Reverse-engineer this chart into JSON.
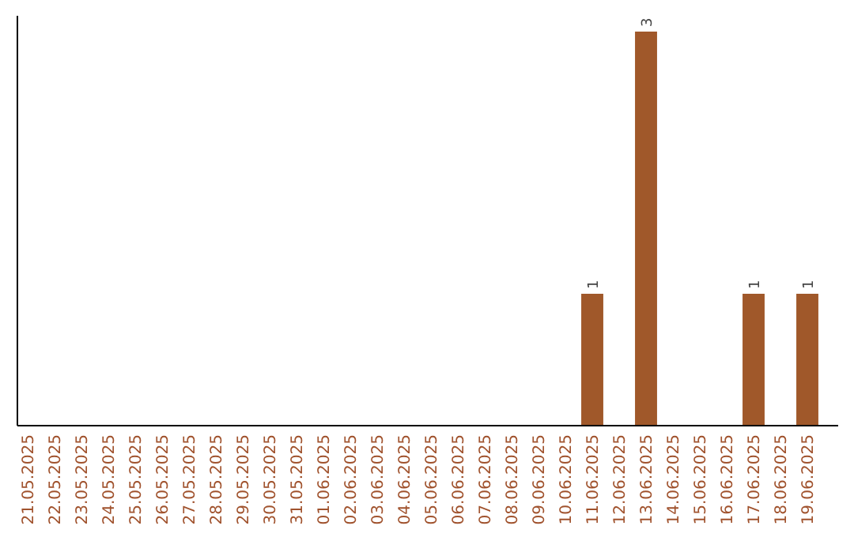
{
  "chart_data": {
    "type": "bar",
    "categories": [
      "21.05.2025",
      "22.05.2025",
      "23.05.2025",
      "24.05.2025",
      "25.05.2025",
      "26.05.2025",
      "27.05.2025",
      "28.05.2025",
      "29.05.2025",
      "30.05.2025",
      "31.05.2025",
      "01.06.2025",
      "02.06.2025",
      "03.06.2025",
      "04.06.2025",
      "05.06.2025",
      "06.06.2025",
      "07.06.2025",
      "08.06.2025",
      "09.06.2025",
      "10.06.2025",
      "11.06.2025",
      "12.06.2025",
      "13.06.2025",
      "14.06.2025",
      "15.06.2025",
      "16.06.2025",
      "17.06.2025",
      "18.06.2025",
      "19.06.2025"
    ],
    "values": [
      null,
      null,
      null,
      null,
      null,
      null,
      null,
      null,
      null,
      null,
      null,
      null,
      null,
      null,
      null,
      null,
      null,
      null,
      null,
      null,
      null,
      1,
      null,
      3,
      null,
      null,
      null,
      1,
      null,
      1
    ],
    "color": "#a0582a",
    "data_labels": true,
    "tick_labels": "x"
  }
}
